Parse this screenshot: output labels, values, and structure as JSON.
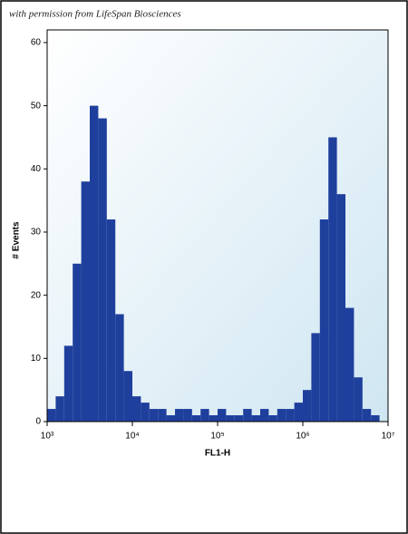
{
  "chart_data": {
    "type": "histogram",
    "annotations": [
      "with permission from LifeSpan Biosciences"
    ],
    "xlabel": "FL1-H",
    "ylabel": "# Events",
    "log_x": true,
    "color": "#1f3f9c",
    "bins": [
      1000,
      1259,
      1585,
      1995,
      2512,
      3162,
      3981,
      5012,
      6310,
      7943,
      10000,
      12589,
      15849,
      19953,
      25119,
      31623,
      39811,
      50119,
      63096,
      79433,
      100000,
      125893,
      158489,
      199526,
      251189,
      316228,
      398107,
      501187,
      630957,
      794328,
      1000000,
      1258925,
      1584893,
      1995262,
      2511886,
      3162278,
      3981072,
      5011872,
      6309573,
      7943282,
      10000000
    ],
    "counts": [
      2,
      4,
      12,
      25,
      38,
      50,
      48,
      32,
      17,
      8,
      4,
      3,
      2,
      2,
      1,
      2,
      2,
      1,
      2,
      1,
      2,
      1,
      1,
      2,
      1,
      2,
      1,
      2,
      2,
      3,
      5,
      14,
      32,
      45,
      36,
      18,
      7,
      2,
      1,
      0
    ],
    "xlim": [
      1000,
      10000000
    ],
    "xticks": [
      {
        "value": 1000,
        "label": "10³"
      },
      {
        "value": 10000,
        "label": "10⁴"
      },
      {
        "value": 100000,
        "label": "10⁵"
      },
      {
        "value": 1000000,
        "label": "10⁶"
      },
      {
        "value": 10000000,
        "label": "10⁷"
      }
    ],
    "ylim": [
      0,
      62
    ],
    "yticks": [
      0,
      10,
      20,
      30,
      40,
      50,
      60
    ]
  }
}
